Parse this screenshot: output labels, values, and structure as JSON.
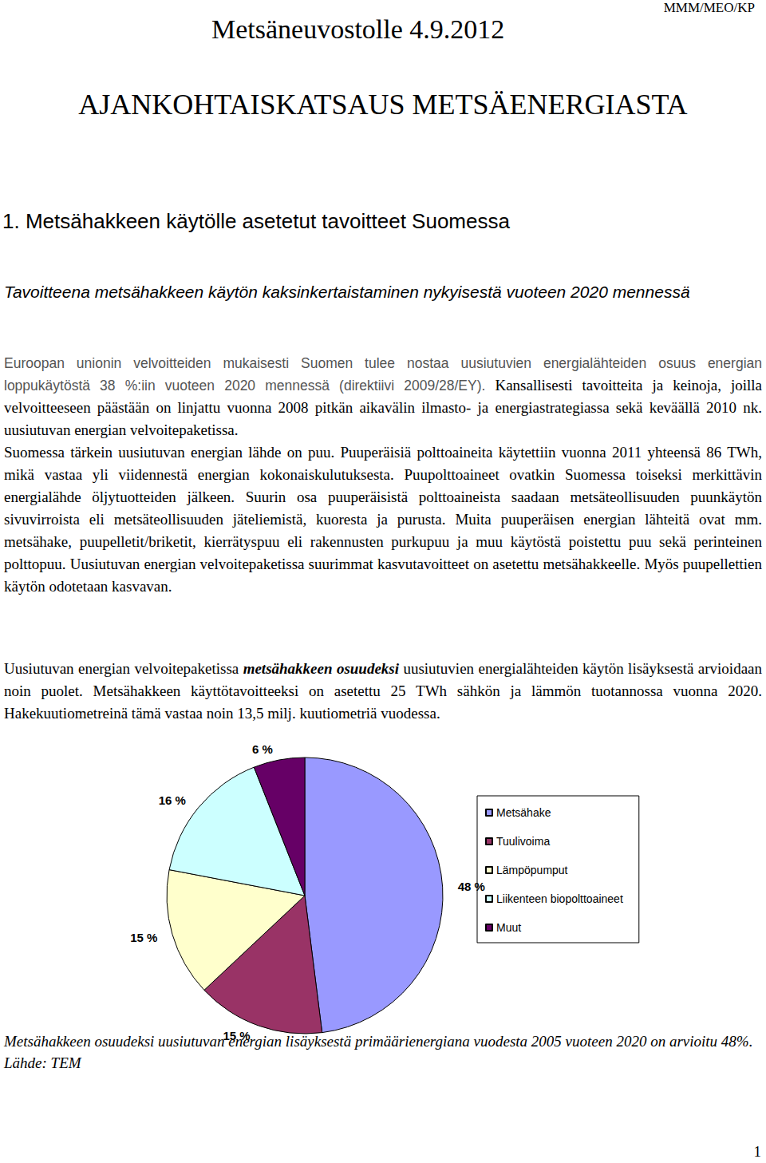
{
  "header": {
    "title": "Metsäneuvostolle 4.9.2012",
    "reference": "MMM/MEO/KP"
  },
  "title": "AJANKOHTAISKATSAUS METSÄENERGIASTA",
  "section": {
    "heading": "1. Metsähakkeen käytölle asetetut tavoitteet Suomessa",
    "subheading": "Tavoitteena metsähakkeen käytön kaksinkertaistaminen nykyisestä vuoteen 2020 mennessä",
    "paragraphs": [
      {
        "runs": [
          {
            "text": "Euroopan unionin velvoitteiden mukaisesti Suomen tulee nostaa uusiutuvien energialähteiden osuus energian loppukäytöstä 38 %:iin vuoteen 2020 mennessä (direktiivi 2009/28/EY).",
            "style": "sans"
          },
          {
            "text": " Kansallisesti tavoitteita ja keinoja, joilla velvoitteeseen päästään on linjattu vuonna 2008 pitkän aikavälin ilmasto- ja energiastrategiassa sekä keväällä 2010 nk. uusiutuvan energian velvoitepaketissa."
          }
        ]
      },
      {
        "runs": [
          {
            "text": "Suomessa tärkein uusiutuvan energian lähde on puu. Puuperäisiä polttoaineita käytettiin vuonna 2011 yhteensä 86 TWh, mikä vastaa yli viidennestä energian kokonaiskulutuksesta. Puupolttoaineet ovatkin Suomessa toiseksi merkittävin energialähde öljytuotteiden jälkeen. Suurin osa puuperäisistä polttoaineista saadaan metsäteollisuuden puunkäytön sivuvirroista eli metsäteollisuuden jäteliemistä, kuoresta ja purusta. Muita puuperäisen energian lähteitä ovat mm. metsähake, puupelletit/briketit, kierrätyspuu eli rakennusten purkupuu ja muu käytöstä poistettu puu sekä perinteinen polttopuu. Uusiutuvan energian velvoitepaketissa suurimmat kasvutavoitteet on asetettu metsähakkeelle. Myös puupellettien käytön odotetaan kasvavan."
          }
        ]
      },
      {
        "runs": [
          {
            "text": "Uusiutuvan energian velvoitepaketissa "
          },
          {
            "text": "metsähakkeen osuudeksi",
            "style": "bold-italic"
          },
          {
            "text": " uusiutuvien energialähteiden käytön lisäyksestä arvioidaan noin puolet. Metsähakkeen käyttötavoitteeksi on asetettu 25 TWh sähkön ja lämmön tuotannossa vuonna 2020. Hakekuutiometreinä tämä vastaa noin 13,5 milj. kuutiometriä vuodessa."
          }
        ]
      }
    ]
  },
  "chart_data": {
    "type": "pie",
    "categories": [
      "Metsähake",
      "Tuulivoima",
      "Lämpöpumput",
      "Liikenteen biopolttoaineet",
      "Muut"
    ],
    "values": [
      48,
      15,
      15,
      16,
      6
    ],
    "value_labels": [
      "48 %",
      "15 %",
      "15 %",
      "16 %",
      "6 %"
    ],
    "colors": [
      "#9999ff",
      "#993366",
      "#ffffcc",
      "#ccffff",
      "#660066"
    ],
    "data_labels": true,
    "legend": "right"
  },
  "caption": "Metsähakkeen osuudeksi uusiutuvan energian lisäyksestä primäärienergiana vuodesta 2005 vuoteen 2020 on arvioitu 48%. Lähde: TEM",
  "page_number": 1
}
